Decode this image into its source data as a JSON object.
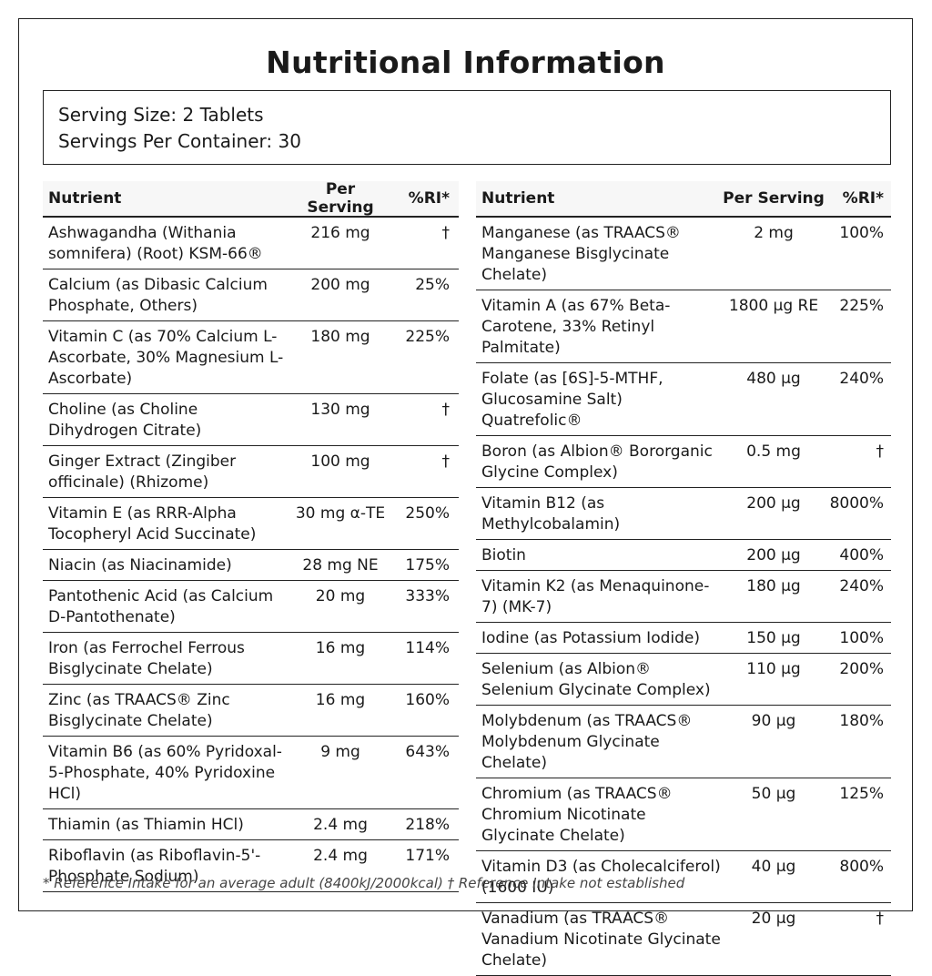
{
  "title": "Nutritional Information",
  "serving": {
    "size": "Serving Size: 2 Tablets",
    "per_container": "Servings Per Container: 30"
  },
  "headers": {
    "nutrient": "Nutrient",
    "per_serving": "Per Serving",
    "ri": "%RI*"
  },
  "left": [
    {
      "name": "Ashwagandha (Withania somnifera) (Root) KSM-66®",
      "amount": "216 mg",
      "ri": "†"
    },
    {
      "name": "Calcium (as Dibasic Calcium Phosphate, Others)",
      "amount": "200 mg",
      "ri": "25%"
    },
    {
      "name": "Vitamin C (as 70% Calcium L-Ascorbate, 30% Magnesium L-Ascorbate)",
      "amount": "180 mg",
      "ri": "225%"
    },
    {
      "name": "Choline (as Choline Dihydrogen Citrate)",
      "amount": "130 mg",
      "ri": "†"
    },
    {
      "name": "Ginger Extract (Zingiber officinale) (Rhizome)",
      "amount": "100 mg",
      "ri": "†"
    },
    {
      "name": "Vitamin E (as RRR-Alpha Tocopheryl Acid Succinate)",
      "amount": "30 mg α-TE",
      "ri": "250%"
    },
    {
      "name": "Niacin (as Niacinamide)",
      "amount": "28 mg NE",
      "ri": "175%"
    },
    {
      "name": "Pantothenic Acid (as Calcium D-Pantothenate)",
      "amount": "20 mg",
      "ri": "333%"
    },
    {
      "name": "Iron (as Ferrochel Ferrous Bisglycinate Chelate)",
      "amount": "16 mg",
      "ri": "114%"
    },
    {
      "name": "Zinc (as TRAACS® Zinc Bisglycinate Chelate)",
      "amount": "16 mg",
      "ri": "160%"
    },
    {
      "name": "Vitamin B6 (as 60% Pyridoxal-5-Phosphate, 40% Pyridoxine HCl)",
      "amount": "9 mg",
      "ri": "643%"
    },
    {
      "name": "Thiamin (as Thiamin HCl)",
      "amount": "2.4 mg",
      "ri": "218%"
    },
    {
      "name": "Riboflavin (as Riboflavin-5'-Phosphate Sodium)",
      "amount": "2.4 mg",
      "ri": "171%"
    }
  ],
  "right": [
    {
      "name": "Manganese (as TRAACS® Manganese Bisglycinate Chelate)",
      "amount": "2 mg",
      "ri": "100%"
    },
    {
      "name": "Vitamin A (as 67% Beta-Carotene, 33% Retinyl Palmitate)",
      "amount": "1800 µg RE",
      "ri": "225%"
    },
    {
      "name": "Folate (as [6S]-5-MTHF, Glucosamine Salt) Quatrefolic®",
      "amount": "480 µg",
      "ri": "240%"
    },
    {
      "name": "Boron (as Albion® Bororganic Glycine Complex)",
      "amount": "0.5 mg",
      "ri": "†"
    },
    {
      "name": "Vitamin B12 (as Methylcobalamin)",
      "amount": "200 µg",
      "ri": "8000%"
    },
    {
      "name": "Biotin",
      "amount": "200 µg",
      "ri": "400%"
    },
    {
      "name": "Vitamin K2 (as Menaquinone-7) (MK-7)",
      "amount": "180 µg",
      "ri": "240%"
    },
    {
      "name": "Iodine (as Potassium Iodide)",
      "amount": "150 µg",
      "ri": "100%"
    },
    {
      "name": "Selenium (as Albion® Selenium Glycinate Complex)",
      "amount": "110 µg",
      "ri": "200%"
    },
    {
      "name": "Molybdenum (as TRAACS® Molybdenum Glycinate Chelate)",
      "amount": "90 µg",
      "ri": "180%"
    },
    {
      "name": "Chromium (as TRAACS® Chromium Nicotinate Glycinate Chelate)",
      "amount": "50 µg",
      "ri": "125%"
    },
    {
      "name": "Vitamin D3 (as Cholecalciferol) (1600 IU)",
      "amount": "40 µg",
      "ri": "800%"
    },
    {
      "name": "Vanadium (as TRAACS® Vanadium Nicotinate Glycinate Chelate)",
      "amount": "20 µg",
      "ri": "†"
    }
  ],
  "footnote": "* Reference Intake for an average adult (8400kJ/2000kcal) † Reference Intake not established"
}
